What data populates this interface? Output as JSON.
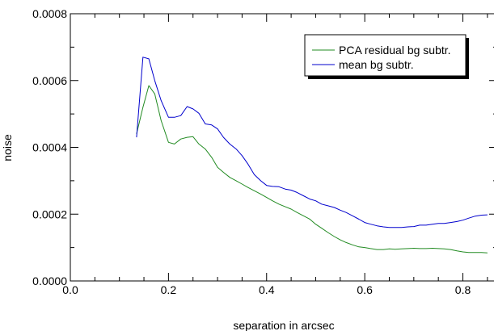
{
  "chart_data": {
    "type": "line",
    "title": "",
    "xlabel": "separation in arcsec",
    "ylabel": "noise",
    "xlim": [
      0.0,
      0.87
    ],
    "ylim": [
      0.0,
      0.0008
    ],
    "xticks": [
      0.0,
      0.2,
      0.4,
      0.6,
      0.8
    ],
    "xtick_labels": [
      "0.0",
      "0.2",
      "0.4",
      "0.6",
      "0.8"
    ],
    "yticks": [
      0.0,
      0.0002,
      0.0004,
      0.0006,
      0.0008
    ],
    "ytick_labels": [
      "0.0000",
      "0.0002",
      "0.0004",
      "0.0006",
      "0.0008"
    ],
    "grid": false,
    "legend_position": "top-right",
    "series": [
      {
        "name": "PCA residual bg subtr.",
        "color": "#228B22",
        "x": [
          0.135,
          0.148,
          0.16,
          0.172,
          0.185,
          0.2,
          0.212,
          0.225,
          0.238,
          0.25,
          0.262,
          0.275,
          0.288,
          0.3,
          0.312,
          0.325,
          0.338,
          0.35,
          0.362,
          0.375,
          0.388,
          0.4,
          0.412,
          0.425,
          0.438,
          0.45,
          0.462,
          0.475,
          0.488,
          0.5,
          0.512,
          0.525,
          0.538,
          0.55,
          0.562,
          0.575,
          0.588,
          0.6,
          0.612,
          0.625,
          0.638,
          0.65,
          0.662,
          0.675,
          0.688,
          0.7,
          0.712,
          0.725,
          0.738,
          0.75,
          0.762,
          0.775,
          0.788,
          0.8,
          0.812,
          0.825,
          0.838,
          0.85
        ],
        "values": [
          0.00044,
          0.00052,
          0.000585,
          0.00056,
          0.00048,
          0.000415,
          0.00041,
          0.000425,
          0.00043,
          0.000432,
          0.00041,
          0.000395,
          0.00037,
          0.00034,
          0.000325,
          0.00031,
          0.0003,
          0.00029,
          0.00028,
          0.00027,
          0.00026,
          0.00025,
          0.00024,
          0.00023,
          0.000222,
          0.000215,
          0.000205,
          0.000195,
          0.000185,
          0.00017,
          0.000158,
          0.000145,
          0.000133,
          0.000123,
          0.000115,
          0.000108,
          0.000102,
          0.0001,
          9.7e-05,
          9.4e-05,
          9.4e-05,
          9.6e-05,
          9.5e-05,
          9.6e-05,
          9.7e-05,
          9.8e-05,
          9.7e-05,
          9.7e-05,
          9.8e-05,
          9.7e-05,
          9.6e-05,
          9.4e-05,
          9e-05,
          8.7e-05,
          8.5e-05,
          8.5e-05,
          8.5e-05,
          8.4e-05
        ]
      },
      {
        "name": "mean bg subtr.",
        "color": "#0000CD",
        "x": [
          0.135,
          0.148,
          0.16,
          0.172,
          0.185,
          0.2,
          0.212,
          0.225,
          0.238,
          0.25,
          0.262,
          0.275,
          0.288,
          0.3,
          0.312,
          0.325,
          0.338,
          0.35,
          0.362,
          0.375,
          0.388,
          0.4,
          0.412,
          0.425,
          0.438,
          0.45,
          0.462,
          0.475,
          0.488,
          0.5,
          0.512,
          0.525,
          0.538,
          0.55,
          0.562,
          0.575,
          0.588,
          0.6,
          0.612,
          0.625,
          0.638,
          0.65,
          0.662,
          0.675,
          0.688,
          0.7,
          0.712,
          0.725,
          0.738,
          0.75,
          0.762,
          0.775,
          0.788,
          0.8,
          0.812,
          0.825,
          0.838,
          0.85
        ],
        "values": [
          0.00043,
          0.00067,
          0.000665,
          0.0006,
          0.00054,
          0.00049,
          0.00049,
          0.000495,
          0.000522,
          0.000515,
          0.000502,
          0.00047,
          0.000467,
          0.000455,
          0.00043,
          0.00041,
          0.000395,
          0.000375,
          0.00035,
          0.000318,
          0.0003,
          0.000286,
          0.000283,
          0.000282,
          0.000275,
          0.000272,
          0.000265,
          0.000255,
          0.000245,
          0.00024,
          0.00023,
          0.000225,
          0.00022,
          0.000212,
          0.000205,
          0.000195,
          0.000185,
          0.000175,
          0.00017,
          0.000165,
          0.000162,
          0.00016,
          0.00016,
          0.00016,
          0.000162,
          0.000163,
          0.000167,
          0.000167,
          0.00017,
          0.000172,
          0.000172,
          0.000175,
          0.000178,
          0.000182,
          0.000188,
          0.000194,
          0.000197,
          0.000198
        ]
      }
    ]
  }
}
